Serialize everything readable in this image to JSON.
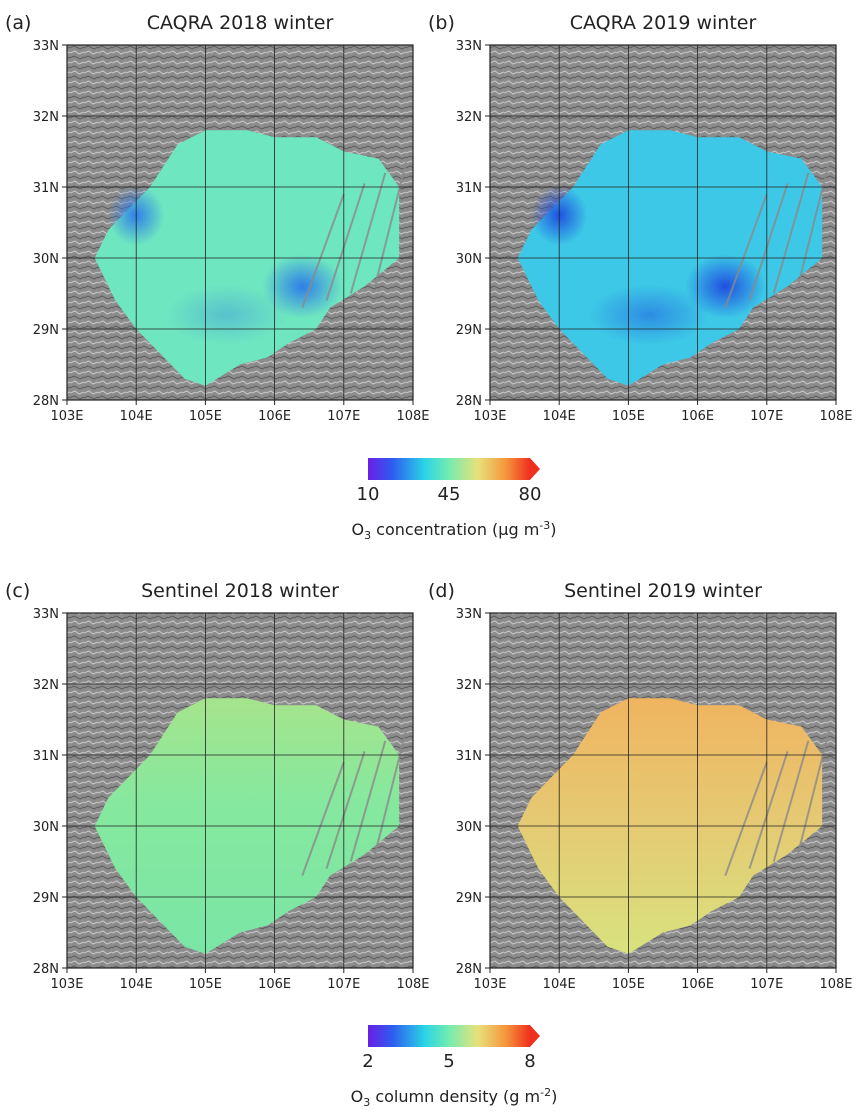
{
  "panels": [
    {
      "label": "(a)",
      "title": "CAQRA 2018 winter"
    },
    {
      "label": "(b)",
      "title": "CAQRA 2019 winter"
    },
    {
      "label": "(c)",
      "title": "Sentinel 2018 winter"
    },
    {
      "label": "(d)",
      "title": "Sentinel 2019 winter"
    }
  ],
  "xticks": [
    "103E",
    "104E",
    "105E",
    "106E",
    "107E",
    "108E"
  ],
  "yticks": [
    "28N",
    "29N",
    "30N",
    "31N",
    "32N",
    "33N"
  ],
  "colorbars": [
    {
      "ticks": [
        10,
        45,
        80
      ],
      "label": [
        "O",
        "3",
        " concentration (μg m",
        "-3",
        ")"
      ]
    },
    {
      "ticks": [
        2,
        5,
        8
      ],
      "label": [
        "O",
        "3",
        " column density (g m",
        "-2",
        ")"
      ]
    }
  ]
}
